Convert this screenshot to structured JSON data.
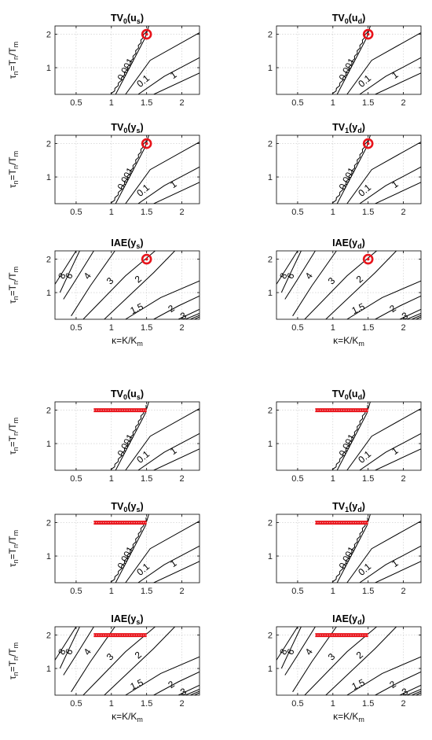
{
  "chart_data": {
    "type": "contour",
    "xlim": [
      0.2,
      2.25
    ],
    "ylim": [
      0.2,
      2.25
    ],
    "xticks": [
      0.5,
      1,
      1.5,
      2
    ],
    "yticks": [
      1,
      2
    ],
    "xtick_labels": [
      "0.5",
      "1",
      "1.5",
      "2"
    ],
    "ytick_labels": [
      "1",
      "2"
    ],
    "grid": true,
    "xlabel": {
      "base": "κ=K/K",
      "sub": "m"
    },
    "ylabel": {
      "base": "τ",
      "sub1": "n",
      "mid": "=T",
      "sub2": "n",
      "tail": "/T",
      "sub3": "m"
    },
    "tv_levels": [
      "0.001",
      "0.1",
      "1"
    ],
    "iae_levels": [
      "8",
      "6",
      "4",
      "3",
      "2",
      "1.5",
      "2",
      "3"
    ],
    "groups": [
      {
        "marker": {
          "type": "circle",
          "x": 1.5,
          "y": 2.0,
          "color": "#e8141b"
        },
        "panels": [
          {
            "title": "TV",
            "sub": "0",
            "arg": "(u",
            "argsub": "s",
            "kind": "tv"
          },
          {
            "title": "TV",
            "sub": "0",
            "arg": "(u",
            "argsub": "d",
            "kind": "tv"
          },
          {
            "title": "TV",
            "sub": "0",
            "arg": "(y",
            "argsub": "s",
            "kind": "tv"
          },
          {
            "title": "TV",
            "sub": "1",
            "arg": "(y",
            "argsub": "d",
            "kind": "tv"
          },
          {
            "title": "IAE",
            "sub": "",
            "arg": "(y",
            "argsub": "s",
            "kind": "iae"
          },
          {
            "title": "IAE",
            "sub": "",
            "arg": "(y",
            "argsub": "d",
            "kind": "iae"
          }
        ]
      },
      {
        "marker": {
          "type": "segment",
          "x": [
            0.75,
            1.5
          ],
          "y": 2.0,
          "color": "#e8141b"
        },
        "panels": [
          {
            "title": "TV",
            "sub": "0",
            "arg": "(u",
            "argsub": "s",
            "kind": "tv"
          },
          {
            "title": "TV",
            "sub": "0",
            "arg": "(u",
            "argsub": "d",
            "kind": "tv"
          },
          {
            "title": "TV",
            "sub": "0",
            "arg": "(y",
            "argsub": "s",
            "kind": "tv"
          },
          {
            "title": "TV",
            "sub": "1",
            "arg": "(y",
            "argsub": "d",
            "kind": "tv"
          },
          {
            "title": "IAE",
            "sub": "",
            "arg": "(y",
            "argsub": "s",
            "kind": "iae"
          },
          {
            "title": "IAE",
            "sub": "",
            "arg": "(y",
            "argsub": "d",
            "kind": "iae"
          }
        ]
      }
    ]
  }
}
